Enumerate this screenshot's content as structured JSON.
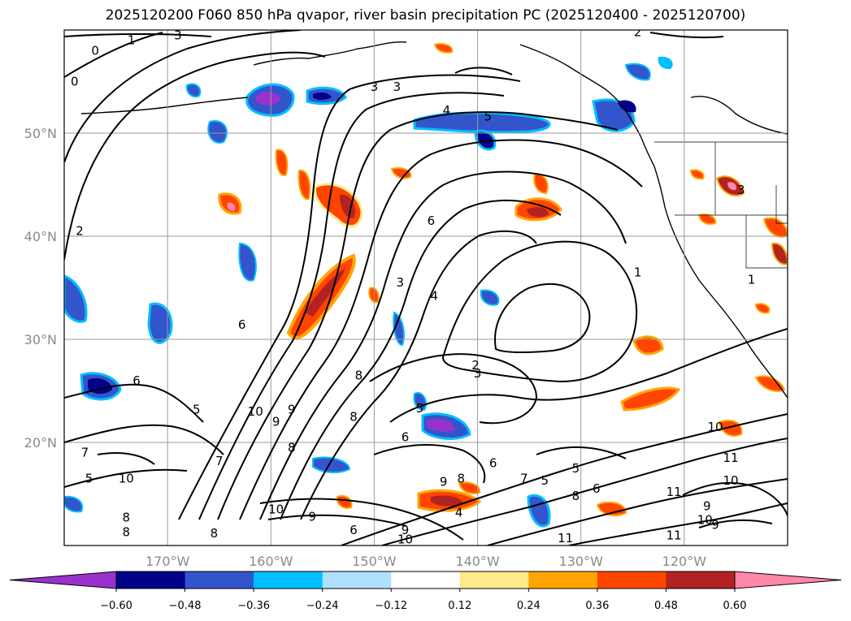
{
  "title": "2025120200 F060 850 hPa qvapor, river basin precipitation PC (2025120400 - 2025120700)",
  "map": {
    "lon_range": [
      -180,
      -110
    ],
    "lat_range": [
      10,
      60
    ],
    "lon_ticks": [
      {
        "value": -170,
        "label": "170°W"
      },
      {
        "value": -160,
        "label": "160°W"
      },
      {
        "value": -150,
        "label": "150°W"
      },
      {
        "value": -140,
        "label": "140°W"
      },
      {
        "value": -130,
        "label": "130°W"
      },
      {
        "value": -120,
        "label": "120°W"
      }
    ],
    "lat_ticks": [
      {
        "value": 20,
        "label": "20°N"
      },
      {
        "value": 30,
        "label": "30°N"
      },
      {
        "value": 40,
        "label": "40°N"
      },
      {
        "value": 50,
        "label": "50°N"
      }
    ],
    "gridlines": true,
    "contour_labels": [
      {
        "lon": -177,
        "lat": 58,
        "text": "0"
      },
      {
        "lon": -173.5,
        "lat": 59,
        "text": "1"
      },
      {
        "lon": -169,
        "lat": 59.5,
        "text": "3"
      },
      {
        "lon": -179,
        "lat": 55,
        "text": "0"
      },
      {
        "lon": -178.5,
        "lat": 40.5,
        "text": "2"
      },
      {
        "lon": -150,
        "lat": 54.5,
        "text": "3"
      },
      {
        "lon": -147.8,
        "lat": 54.5,
        "text": "3"
      },
      {
        "lon": -143,
        "lat": 52.2,
        "text": "4"
      },
      {
        "lon": -139,
        "lat": 51.6,
        "text": "5"
      },
      {
        "lon": -124.5,
        "lat": 59.8,
        "text": "2"
      },
      {
        "lon": -144.5,
        "lat": 41.5,
        "text": "6"
      },
      {
        "lon": -147.5,
        "lat": 35.5,
        "text": "3"
      },
      {
        "lon": -144.2,
        "lat": 34.2,
        "text": "4"
      },
      {
        "lon": -124.5,
        "lat": 36.5,
        "text": "1"
      },
      {
        "lon": -140.2,
        "lat": 27.5,
        "text": "2"
      },
      {
        "lon": -140,
        "lat": 26.7,
        "text": "3"
      },
      {
        "lon": -151.5,
        "lat": 26.5,
        "text": "8"
      },
      {
        "lon": -162.8,
        "lat": 31.4,
        "text": "6"
      },
      {
        "lon": -173,
        "lat": 26,
        "text": "6"
      },
      {
        "lon": -167.2,
        "lat": 23.2,
        "text": "5"
      },
      {
        "lon": -158,
        "lat": 23.2,
        "text": "9"
      },
      {
        "lon": -159.5,
        "lat": 22,
        "text": "9"
      },
      {
        "lon": -161.5,
        "lat": 23,
        "text": "10"
      },
      {
        "lon": -152,
        "lat": 22.5,
        "text": "8"
      },
      {
        "lon": -158,
        "lat": 19.5,
        "text": "8"
      },
      {
        "lon": -165,
        "lat": 18.2,
        "text": "7"
      },
      {
        "lon": -178,
        "lat": 19,
        "text": "7"
      },
      {
        "lon": -177.6,
        "lat": 16.5,
        "text": "5"
      },
      {
        "lon": -174,
        "lat": 16.5,
        "text": "10"
      },
      {
        "lon": -145.6,
        "lat": 23.3,
        "text": "5"
      },
      {
        "lon": -147,
        "lat": 20.5,
        "text": "6"
      },
      {
        "lon": -143.3,
        "lat": 16.2,
        "text": "9"
      },
      {
        "lon": -141.6,
        "lat": 16.5,
        "text": "8"
      },
      {
        "lon": -138.5,
        "lat": 18,
        "text": "6"
      },
      {
        "lon": -135.5,
        "lat": 16.5,
        "text": "7"
      },
      {
        "lon": -133.5,
        "lat": 16.3,
        "text": "5"
      },
      {
        "lon": -130.5,
        "lat": 17.5,
        "text": "5"
      },
      {
        "lon": -128.5,
        "lat": 15.5,
        "text": "6"
      },
      {
        "lon": -130.5,
        "lat": 14.8,
        "text": "8"
      },
      {
        "lon": -141.8,
        "lat": 13.2,
        "text": "4"
      },
      {
        "lon": -159.5,
        "lat": 13.5,
        "text": "10"
      },
      {
        "lon": -156,
        "lat": 12.8,
        "text": "9"
      },
      {
        "lon": -152,
        "lat": 11.5,
        "text": "6"
      },
      {
        "lon": -147,
        "lat": 11.5,
        "text": "9"
      },
      {
        "lon": -147,
        "lat": 10.6,
        "text": "10"
      },
      {
        "lon": -174,
        "lat": 12.7,
        "text": "8"
      },
      {
        "lon": -174,
        "lat": 11.3,
        "text": "8"
      },
      {
        "lon": -165.5,
        "lat": 11.2,
        "text": "8"
      },
      {
        "lon": -131.5,
        "lat": 10.7,
        "text": "11"
      },
      {
        "lon": -117,
        "lat": 21.5,
        "text": "10"
      },
      {
        "lon": -115.5,
        "lat": 18.5,
        "text": "11"
      },
      {
        "lon": -115.5,
        "lat": 16.3,
        "text": "10"
      },
      {
        "lon": -117.8,
        "lat": 13.8,
        "text": "9"
      },
      {
        "lon": -121,
        "lat": 15.2,
        "text": "11"
      },
      {
        "lon": -118,
        "lat": 12.5,
        "text": "10"
      },
      {
        "lon": -121,
        "lat": 11,
        "text": "11"
      },
      {
        "lon": -117,
        "lat": 12,
        "text": "9"
      },
      {
        "lon": -113.5,
        "lat": 35.8,
        "text": "1"
      },
      {
        "lon": -114.5,
        "lat": 44.5,
        "text": "3"
      }
    ]
  },
  "colorbar": {
    "levels": [
      -0.6,
      -0.48,
      -0.36,
      -0.24,
      -0.12,
      0.12,
      0.24,
      0.36,
      0.48,
      0.6
    ],
    "tick_labels": [
      "−0.60",
      "−0.48",
      "−0.36",
      "−0.24",
      "−0.12",
      "0.12",
      "0.24",
      "0.36",
      "0.48",
      "0.60"
    ],
    "colors": [
      "#9932cc",
      "#00008b",
      "#3355cc",
      "#00bfff",
      "#aee0ff",
      "#ffffff",
      "#ffe98a",
      "#ffa500",
      "#ff4500",
      "#b22222",
      "#ff88aa"
    ],
    "extend": "both"
  }
}
